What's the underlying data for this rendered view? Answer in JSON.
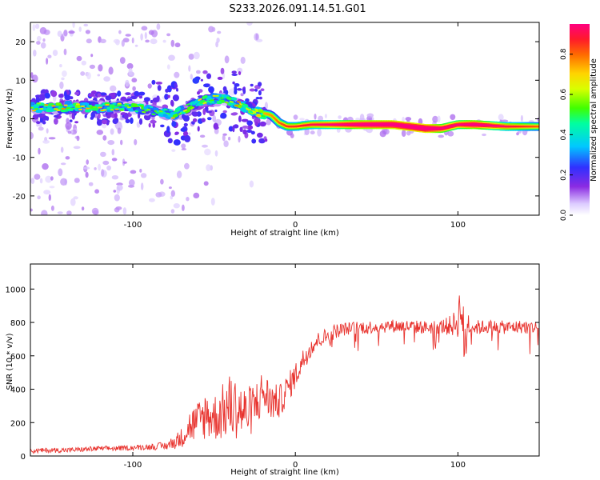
{
  "figure": {
    "title": "S233.2026.091.14.51.G01"
  },
  "colors": {
    "snr_line": "#e8332e",
    "track_core": "#e81e3a",
    "scatter": "#8a3cff",
    "scatter_light": "#d9c8f7"
  },
  "chart_data": [
    {
      "type": "heatmap",
      "name": "spectrogram",
      "xlabel": "Height of straight line (km)",
      "ylabel": "Frequency (Hz)",
      "xlim": [
        -163,
        150
      ],
      "ylim": [
        -25,
        25
      ],
      "xticks": [
        -100,
        0,
        100
      ],
      "yticks": [
        -20,
        -10,
        0,
        10,
        20
      ],
      "x_tick_labels": [
        "-100",
        "0",
        "100"
      ],
      "y_tick_labels": [
        "-20",
        "-10",
        "0",
        "10",
        "20"
      ],
      "colorbar": {
        "label": "Normalized spectral amplitude",
        "range": [
          0.0,
          0.95
        ],
        "ticks": [
          0.0,
          0.2,
          0.4,
          0.6,
          0.8
        ],
        "tick_labels": [
          "0.0",
          "0.2",
          "0.4",
          "0.6",
          "0.8"
        ]
      },
      "dominant_track": {
        "x": [
          -163,
          -140,
          -120,
          -100,
          -85,
          -75,
          -65,
          -55,
          -45,
          -35,
          -25,
          -15,
          -10,
          -5,
          0,
          10,
          20,
          40,
          60,
          80,
          90,
          100,
          110,
          130,
          150
        ],
        "freq": [
          3,
          3,
          3,
          3,
          2,
          1,
          3,
          5,
          5,
          4,
          2,
          1,
          -1,
          -2,
          -2,
          -1.5,
          -1.5,
          -1.5,
          -1.5,
          -2.5,
          -2.5,
          -1.5,
          -1.5,
          -2,
          -2
        ],
        "amplitude": [
          0.3,
          0.35,
          0.3,
          0.3,
          0.3,
          0.3,
          0.3,
          0.35,
          0.3,
          0.35,
          0.4,
          0.45,
          0.5,
          0.55,
          0.55,
          0.6,
          0.65,
          0.8,
          0.85,
          0.9,
          0.75,
          0.7,
          0.8,
          0.6,
          0.5
        ]
      }
    },
    {
      "type": "line",
      "name": "snr",
      "xlabel": "Height of straight line (km)",
      "ylabel": "SNR (10 * v/v)",
      "xlim": [
        -163,
        150
      ],
      "ylim": [
        0,
        1150
      ],
      "xticks": [
        -100,
        0,
        100
      ],
      "yticks": [
        0,
        200,
        400,
        600,
        800,
        1000
      ],
      "x_tick_labels": [
        "-100",
        "0",
        "100"
      ],
      "y_tick_labels": [
        "0",
        "200",
        "400",
        "600",
        "800",
        "1000"
      ],
      "series": [
        {
          "name": "SNR",
          "x": [
            -163,
            -150,
            -140,
            -130,
            -120,
            -110,
            -100,
            -90,
            -80,
            -75,
            -70,
            -65,
            -60,
            -55,
            -50,
            -45,
            -40,
            -35,
            -30,
            -25,
            -20,
            -15,
            -10,
            -5,
            0,
            5,
            10,
            15,
            20,
            25,
            30,
            40,
            50,
            60,
            70,
            80,
            90,
            95,
            100,
            102,
            104,
            106,
            110,
            120,
            130,
            140,
            150
          ],
          "values": [
            30,
            35,
            35,
            40,
            45,
            45,
            50,
            55,
            60,
            80,
            110,
            180,
            200,
            250,
            230,
            260,
            300,
            280,
            250,
            300,
            380,
            330,
            320,
            400,
            480,
            580,
            660,
            700,
            720,
            750,
            760,
            770,
            775,
            780,
            775,
            770,
            775,
            780,
            800,
            950,
            600,
            800,
            770,
            775,
            770,
            775,
            770
          ],
          "noise": [
            15,
            15,
            15,
            15,
            15,
            15,
            15,
            18,
            25,
            40,
            60,
            100,
            130,
            150,
            140,
            170,
            200,
            180,
            160,
            150,
            140,
            120,
            100,
            90,
            80,
            70,
            60,
            50,
            50,
            45,
            40,
            40,
            40,
            40,
            40,
            40,
            45,
            60,
            90,
            200,
            200,
            90,
            45,
            40,
            40,
            40,
            40
          ]
        }
      ]
    }
  ]
}
